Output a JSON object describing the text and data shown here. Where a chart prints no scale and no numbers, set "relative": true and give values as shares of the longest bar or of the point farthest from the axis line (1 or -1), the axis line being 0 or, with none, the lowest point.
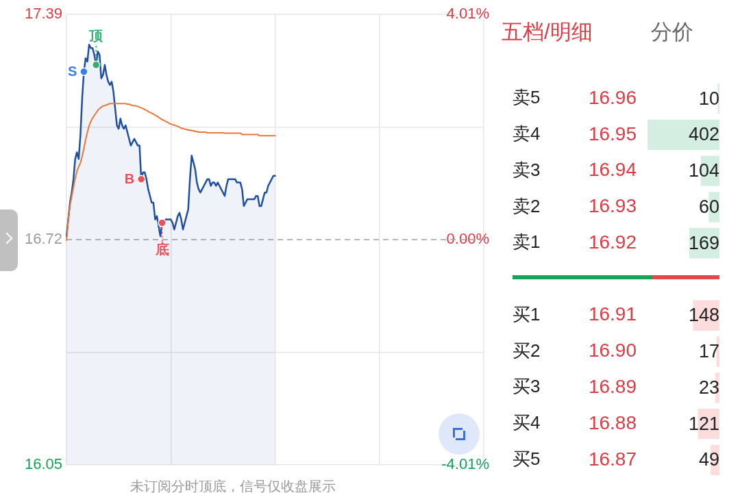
{
  "chart_data": [
    {
      "type": "line",
      "categories": [
        null,
        null,
        null,
        null,
        null,
        null,
        null,
        null,
        null,
        null,
        null,
        null,
        null,
        null,
        null,
        null,
        null,
        null,
        null,
        null,
        null,
        null,
        null,
        null,
        null,
        null,
        null,
        null,
        null,
        null,
        null,
        null,
        null,
        null,
        null,
        null,
        null,
        null,
        null,
        null,
        null,
        null,
        null,
        null,
        null,
        null,
        null,
        null,
        null,
        null,
        null,
        null,
        null,
        null,
        null,
        null,
        null,
        null,
        null,
        null,
        null,
        null,
        null,
        null,
        null,
        null,
        null,
        null,
        null,
        null,
        null,
        null,
        null,
        null,
        null,
        null,
        null,
        null,
        null,
        null,
        null,
        null,
        null,
        null,
        null,
        null,
        null,
        null,
        null,
        null,
        null,
        null,
        null,
        null,
        null,
        null,
        null,
        null,
        null,
        null,
        null,
        null,
        null,
        null,
        null,
        null,
        null,
        null,
        null,
        null,
        null,
        null,
        null,
        null,
        null,
        null,
        null,
        null,
        null,
        null,
        null,
        null,
        null,
        null,
        null,
        null,
        null,
        null,
        null,
        null,
        null,
        null,
        null,
        null,
        null,
        null,
        null,
        null,
        null,
        null,
        null,
        null,
        null,
        null,
        null,
        null,
        null,
        null,
        null,
        null,
        null,
        null,
        null,
        null,
        null,
        null,
        null,
        null,
        null,
        null,
        null,
        null,
        null,
        null,
        null,
        null,
        null,
        null,
        null,
        null,
        null,
        null,
        null,
        null,
        null,
        null,
        null,
        null,
        null,
        null,
        null,
        null,
        null,
        null,
        null,
        null,
        null,
        null,
        null,
        null,
        null,
        null,
        null,
        null,
        null,
        null,
        null,
        null,
        null,
        null,
        null,
        null,
        null,
        null,
        null,
        null,
        null,
        null,
        null,
        null,
        null,
        null,
        null,
        null,
        null,
        null,
        null,
        null,
        null,
        null,
        null,
        null,
        null,
        null,
        null,
        null,
        null,
        null,
        null,
        null,
        null,
        null,
        null,
        null,
        null,
        null,
        null,
        null,
        null,
        null,
        null
      ],
      "series": [
        {
          "type": "area",
          "color": "#1f4fa3",
          "values": [
            16.73,
            16.78,
            16.83,
            16.86,
            16.9,
            16.96,
            16.98,
            16.96,
            17.03,
            17.14,
            17.22,
            17.26,
            17.25,
            17.3,
            17.29,
            17.29,
            17.27,
            17.24,
            17.28,
            17.27,
            17.2,
            17.21,
            17.24,
            17.21,
            17.19,
            17.18,
            17.19,
            17.16,
            17.11,
            17.06,
            17.05,
            17.08,
            17.06,
            17.05,
            17.06,
            17.04,
            17.02,
            17.0,
            17.01,
            17.02,
            17.01,
            17.0,
            17.0,
            16.9,
            16.92,
            16.92,
            16.9,
            16.87,
            16.85,
            16.83,
            16.83,
            16.78,
            16.79,
            16.76,
            16.73,
            16.77,
            16.77,
            16.78,
            16.78,
            16.78,
            16.78,
            16.77,
            16.75,
            16.77,
            16.79,
            16.8,
            16.78,
            16.75,
            16.77,
            16.79,
            16.81,
            16.9,
            16.97,
            16.95,
            16.93,
            16.89,
            16.87,
            16.86,
            16.87,
            16.88,
            16.89,
            16.9,
            16.9,
            16.88,
            16.89,
            16.89,
            16.88,
            16.89,
            16.88,
            16.87,
            16.86,
            16.85,
            16.88,
            16.9,
            16.9,
            16.9,
            16.9,
            16.9,
            16.89,
            16.89,
            16.89,
            16.87,
            16.82,
            16.83,
            16.84,
            16.84,
            16.84,
            16.84,
            16.84,
            16.85,
            16.85,
            16.82,
            16.82,
            16.84,
            16.86,
            16.86,
            16.88,
            16.89,
            16.9,
            16.91,
            16.91,
            null,
            null,
            null,
            null,
            null,
            null,
            null,
            null,
            null,
            null,
            null,
            null,
            null,
            null,
            null,
            null,
            null,
            null,
            null,
            null,
            null,
            null,
            null,
            null,
            null,
            null,
            null,
            null,
            null,
            null,
            null,
            null,
            null,
            null,
            null,
            null,
            null,
            null,
            null,
            null,
            null,
            null,
            null,
            null,
            null,
            null,
            null,
            null,
            null,
            null,
            null,
            null,
            null,
            null,
            null,
            null,
            null,
            null,
            null,
            null,
            null,
            null,
            null,
            null,
            null,
            null,
            null,
            null,
            null,
            null,
            null,
            null,
            null,
            null,
            null,
            null,
            null,
            null,
            null,
            null,
            null,
            null,
            null,
            null,
            null,
            null,
            null,
            null,
            null,
            null,
            null,
            null,
            null,
            null,
            null,
            null,
            null,
            null,
            null,
            null,
            null,
            null,
            null,
            null,
            null,
            null,
            null,
            null,
            null,
            null,
            null,
            null,
            null,
            null,
            null,
            null,
            null,
            null,
            null,
            null
          ]
        },
        {
          "type": "line",
          "color": "#e8783a",
          "values": [
            16.718,
            16.779,
            16.821,
            16.849,
            16.876,
            16.902,
            16.924,
            16.937,
            16.948,
            16.968,
            16.991,
            17.018,
            17.04,
            17.059,
            17.072,
            17.081,
            17.09,
            17.097,
            17.105,
            17.11,
            17.114,
            17.118,
            17.119,
            17.121,
            17.123,
            17.125,
            17.125,
            17.125,
            17.125,
            17.125,
            17.125,
            17.125,
            17.125,
            17.125,
            17.125,
            17.123,
            17.123,
            17.121,
            17.119,
            17.119,
            17.118,
            17.116,
            17.114,
            17.112,
            17.11,
            17.107,
            17.105,
            17.101,
            17.099,
            17.096,
            17.094,
            17.09,
            17.088,
            17.084,
            17.081,
            17.077,
            17.075,
            17.072,
            17.07,
            17.066,
            17.064,
            17.062,
            17.061,
            17.059,
            17.057,
            17.055,
            17.051,
            17.051,
            17.049,
            17.048,
            17.046,
            17.046,
            17.044,
            17.044,
            17.042,
            17.042,
            17.04,
            17.04,
            17.04,
            17.04,
            17.04,
            17.038,
            17.038,
            17.038,
            17.038,
            17.038,
            17.038,
            17.038,
            17.038,
            17.038,
            17.038,
            17.037,
            17.037,
            17.037,
            17.037,
            17.037,
            17.037,
            17.037,
            17.037,
            17.037,
            17.037,
            17.033,
            17.033,
            17.033,
            17.033,
            17.033,
            17.033,
            17.033,
            17.033,
            17.033,
            17.033,
            17.029,
            17.029,
            17.029,
            17.029,
            17.029,
            17.029,
            17.029,
            17.029,
            17.029,
            17.029,
            null,
            null,
            null,
            null,
            null,
            null,
            null,
            null,
            null,
            null,
            null,
            null,
            null,
            null,
            null,
            null,
            null,
            null,
            null,
            null,
            null,
            null,
            null,
            null,
            null,
            null,
            null,
            null,
            null,
            null,
            null,
            null,
            null,
            null,
            null,
            null,
            null,
            null,
            null,
            null,
            null,
            null,
            null,
            null,
            null,
            null,
            null,
            null,
            null,
            null,
            null,
            null,
            null,
            null,
            null,
            null,
            null,
            null,
            null,
            null,
            null,
            null,
            null,
            null,
            null,
            null,
            null,
            null,
            null,
            null,
            null,
            null,
            null,
            null,
            null,
            null,
            null,
            null,
            null,
            null,
            null,
            null,
            null,
            null,
            null,
            null,
            null,
            null,
            null,
            null,
            null,
            null,
            null,
            null,
            null,
            null,
            null,
            null,
            null,
            null,
            null,
            null,
            null,
            null,
            null,
            null,
            null,
            null,
            null,
            null,
            null,
            null,
            null,
            null,
            null,
            null,
            null,
            null,
            null,
            null
          ]
        },
        {
          "type": "scatter",
          "name": "S",
          "color": "#3a7fe0",
          "marker": "circle",
          "values": [
            null,
            null,
            null,
            null,
            null,
            null,
            null,
            null,
            null,
            null,
            17.22,
            null,
            null,
            null,
            null,
            null,
            null,
            null,
            null,
            null,
            null,
            null,
            null,
            null,
            null,
            null,
            null,
            null,
            null,
            null,
            null,
            null,
            null,
            null,
            null,
            null,
            null,
            null,
            null,
            null,
            null,
            null,
            null,
            null,
            null,
            null,
            null,
            null,
            null,
            null,
            null,
            null,
            null,
            null,
            null,
            null,
            null,
            null,
            null,
            null,
            null,
            null,
            null,
            null,
            null,
            null,
            null,
            null,
            null,
            null,
            null,
            null,
            null,
            null,
            null,
            null,
            null,
            null,
            null,
            null,
            null,
            null,
            null,
            null,
            null,
            null,
            null,
            null,
            null,
            null,
            null,
            null,
            null,
            null,
            null,
            null,
            null,
            null,
            null,
            null,
            null,
            null,
            null,
            null,
            null,
            null,
            null,
            null,
            null,
            null,
            null,
            null,
            null,
            null,
            null,
            null,
            null,
            null,
            null,
            null,
            null,
            null,
            null,
            null,
            null,
            null,
            null,
            null,
            null,
            null,
            null,
            null,
            null,
            null,
            null,
            null,
            null,
            null,
            null,
            null,
            null,
            null,
            null,
            null,
            null,
            null,
            null,
            null,
            null,
            null,
            null,
            null,
            null,
            null,
            null,
            null,
            null,
            null,
            null,
            null,
            null,
            null,
            null,
            null,
            null,
            null,
            null,
            null,
            null,
            null,
            null,
            null,
            null,
            null,
            null,
            null,
            null,
            null,
            null,
            null,
            null,
            null,
            null,
            null,
            null,
            null,
            null,
            null,
            null,
            null,
            null,
            null,
            null,
            null,
            null,
            null,
            null,
            null,
            null,
            null,
            null,
            null,
            null,
            null,
            null,
            null,
            null,
            null,
            null,
            null,
            null,
            null,
            null,
            null,
            null,
            null,
            null,
            null,
            null,
            null,
            null,
            null,
            null,
            null,
            null,
            null,
            null,
            null,
            null,
            null,
            null,
            null,
            null,
            null,
            null,
            null,
            null,
            null,
            null,
            null,
            null
          ]
        },
        {
          "type": "scatter",
          "name": "顶",
          "color": "#35ad72",
          "marker": "circle",
          "values": [
            null,
            null,
            null,
            null,
            null,
            null,
            null,
            null,
            null,
            null,
            null,
            null,
            null,
            null,
            null,
            null,
            null,
            17.24,
            null,
            null,
            null,
            null,
            null,
            null,
            null,
            null,
            null,
            null,
            null,
            null,
            null,
            null,
            null,
            null,
            null,
            null,
            null,
            null,
            null,
            null,
            null,
            null,
            null,
            null,
            null,
            null,
            null,
            null,
            null,
            null,
            null,
            null,
            null,
            null,
            null,
            null,
            null,
            null,
            null,
            null,
            null,
            null,
            null,
            null,
            null,
            null,
            null,
            null,
            null,
            null,
            null,
            null,
            null,
            null,
            null,
            null,
            null,
            null,
            null,
            null,
            null,
            null,
            null,
            null,
            null,
            null,
            null,
            null,
            null,
            null,
            null,
            null,
            null,
            null,
            null,
            null,
            null,
            null,
            null,
            null,
            null,
            null,
            null,
            null,
            null,
            null,
            null,
            null,
            null,
            null,
            null,
            null,
            null,
            null,
            null,
            null,
            null,
            null,
            null,
            null,
            null,
            null,
            null,
            null,
            null,
            null,
            null,
            null,
            null,
            null,
            null,
            null,
            null,
            null,
            null,
            null,
            null,
            null,
            null,
            null,
            null,
            null,
            null,
            null,
            null,
            null,
            null,
            null,
            null,
            null,
            null,
            null,
            null,
            null,
            null,
            null,
            null,
            null,
            null,
            null,
            null,
            null,
            null,
            null,
            null,
            null,
            null,
            null,
            null,
            null,
            null,
            null,
            null,
            null,
            null,
            null,
            null,
            null,
            null,
            null,
            null,
            null,
            null,
            null,
            null,
            null,
            null,
            null,
            null,
            null,
            null,
            null,
            null,
            null,
            null,
            null,
            null,
            null,
            null,
            null,
            null,
            null,
            null,
            null,
            null,
            null,
            null,
            null,
            null,
            null,
            null,
            null,
            null,
            null,
            null,
            null,
            null,
            null,
            null,
            null,
            null,
            null,
            null,
            null,
            null,
            null,
            null,
            null,
            null,
            null,
            null,
            null,
            null,
            null,
            null,
            null,
            null,
            null,
            null,
            null,
            null
          ]
        },
        {
          "type": "scatter",
          "name": "B",
          "color": "#e8535b",
          "marker": "circle",
          "values": [
            null,
            null,
            null,
            null,
            null,
            null,
            null,
            null,
            null,
            null,
            null,
            null,
            null,
            null,
            null,
            null,
            null,
            null,
            null,
            null,
            null,
            null,
            null,
            null,
            null,
            null,
            null,
            null,
            null,
            null,
            null,
            null,
            null,
            null,
            null,
            null,
            null,
            null,
            null,
            null,
            null,
            null,
            null,
            16.9,
            null,
            null,
            null,
            null,
            null,
            null,
            null,
            null,
            null,
            null,
            null,
            null,
            null,
            null,
            null,
            null,
            null,
            null,
            null,
            null,
            null,
            null,
            null,
            null,
            null,
            null,
            null,
            null,
            null,
            null,
            null,
            null,
            null,
            null,
            null,
            null,
            null,
            null,
            null,
            null,
            null,
            null,
            null,
            null,
            null,
            null,
            null,
            null,
            null,
            null,
            null,
            null,
            null,
            null,
            null,
            null,
            null,
            null,
            null,
            null,
            null,
            null,
            null,
            null,
            null,
            null,
            null,
            null,
            null,
            null,
            null,
            null,
            null,
            null,
            null,
            null,
            null,
            null,
            null,
            null,
            null,
            null,
            null,
            null,
            null,
            null,
            null,
            null,
            null,
            null,
            null,
            null,
            null,
            null,
            null,
            null,
            null,
            null,
            null,
            null,
            null,
            null,
            null,
            null,
            null,
            null,
            null,
            null,
            null,
            null,
            null,
            null,
            null,
            null,
            null,
            null,
            null,
            null,
            null,
            null,
            null,
            null,
            null,
            null,
            null,
            null,
            null,
            null,
            null,
            null,
            null,
            null,
            null,
            null,
            null,
            null,
            null,
            null,
            null,
            null,
            null,
            null,
            null,
            null,
            null,
            null,
            null,
            null,
            null,
            null,
            null,
            null,
            null,
            null,
            null,
            null,
            null,
            null,
            null,
            null,
            null,
            null,
            null,
            null,
            null,
            null,
            null,
            null,
            null,
            null,
            null,
            null,
            null,
            null,
            null,
            null,
            null,
            null,
            null,
            null,
            null,
            null,
            null,
            null,
            null,
            null,
            null,
            null,
            null,
            null,
            null,
            null,
            null,
            null,
            null,
            null,
            null
          ]
        },
        {
          "type": "scatter",
          "name": "底",
          "color": "#e8535b",
          "marker": "circle",
          "values": [
            null,
            null,
            null,
            null,
            null,
            null,
            null,
            null,
            null,
            null,
            null,
            null,
            null,
            null,
            null,
            null,
            null,
            null,
            null,
            null,
            null,
            null,
            null,
            null,
            null,
            null,
            null,
            null,
            null,
            null,
            null,
            null,
            null,
            null,
            null,
            null,
            null,
            null,
            null,
            null,
            null,
            null,
            null,
            null,
            null,
            null,
            null,
            null,
            null,
            null,
            null,
            null,
            null,
            null,
            null,
            16.77,
            null,
            null,
            null,
            null,
            null,
            null,
            null,
            null,
            null,
            null,
            null,
            null,
            null,
            null,
            null,
            null,
            null,
            null,
            null,
            null,
            null,
            null,
            null,
            null,
            null,
            null,
            null,
            null,
            null,
            null,
            null,
            null,
            null,
            null,
            null,
            null,
            null,
            null,
            null,
            null,
            null,
            null,
            null,
            null,
            null,
            null,
            null,
            null,
            null,
            null,
            null,
            null,
            null,
            null,
            null,
            null,
            null,
            null,
            null,
            null,
            null,
            null,
            null,
            null,
            null,
            null,
            null,
            null,
            null,
            null,
            null,
            null,
            null,
            null,
            null,
            null,
            null,
            null,
            null,
            null,
            null,
            null,
            null,
            null,
            null,
            null,
            null,
            null,
            null,
            null,
            null,
            null,
            null,
            null,
            null,
            null,
            null,
            null,
            null,
            null,
            null,
            null,
            null,
            null,
            null,
            null,
            null,
            null,
            null,
            null,
            null,
            null,
            null,
            null,
            null,
            null,
            null,
            null,
            null,
            null,
            null,
            null,
            null,
            null,
            null,
            null,
            null,
            null,
            null,
            null,
            null,
            null,
            null,
            null,
            null,
            null,
            null,
            null,
            null,
            null,
            null,
            null,
            null,
            null,
            null,
            null,
            null,
            null,
            null,
            null,
            null,
            null,
            null,
            null,
            null,
            null,
            null,
            null,
            null,
            null,
            null,
            null,
            null,
            null,
            null,
            null,
            null,
            null,
            null,
            null,
            null,
            null,
            null,
            null,
            null,
            null,
            null,
            null,
            null,
            null,
            null,
            null,
            null,
            null,
            null
          ]
        }
      ],
      "ylim": [
        16.05,
        17.39
      ],
      "yticks": [
        16.05,
        {
          "value": 16.385,
          "label": null
        },
        16.72,
        {
          "value": 17.055,
          "label": null
        },
        17.39
      ],
      "y2lim": [
        -4.01,
        4.01
      ],
      "y2ticks": [
        {
          "value": -4.01,
          "label": "-4.01%"
        },
        {
          "value": 0,
          "label": "0.00%"
        },
        {
          "value": 4.01,
          "label": "4.01%"
        }
      ],
      "grid": true,
      "ref_lines": [
        {
          "axis": "y",
          "value": 16.72,
          "color": "#9e9e9e",
          "line_style": "dashed"
        }
      ],
      "annotations": [
        "未订阅分时顶底，信号仅收盘展示"
      ]
    },
    {
      "type": "bar",
      "orientation": "horizontal",
      "title": "五档/明细",
      "subtitle": "分价",
      "categories": [
        "卖5",
        "卖4",
        "卖3",
        "卖2",
        "卖1",
        null,
        "买1",
        "买2",
        "买3",
        "买4",
        "买5"
      ],
      "y2_categories": [
        "16.96",
        "16.95",
        "16.94",
        "16.93",
        "16.92",
        null,
        "16.91",
        "16.90",
        "16.89",
        "16.88",
        "16.87"
      ],
      "series": [
        {
          "color": "#d4efe1",
          "values": [
            10,
            402,
            104,
            60,
            169,
            null,
            null,
            null,
            null,
            null,
            null
          ]
        },
        {
          "color": "#fcdcdd",
          "values": [
            null,
            null,
            null,
            null,
            null,
            null,
            148,
            17,
            23,
            121,
            49
          ]
        }
      ],
      "xlim": [
        402,
        0
      ],
      "data_labels": true
    },
    {
      "type": "bar",
      "orientation": "horizontal",
      "stacked": true,
      "relative": true,
      "categories": [
        null
      ],
      "series": [
        {
          "color": "#17a35a",
          "values": [
            0.675
          ]
        },
        {
          "color": "#e5464c",
          "values": [
            0.325
          ]
        }
      ]
    }
  ]
}
